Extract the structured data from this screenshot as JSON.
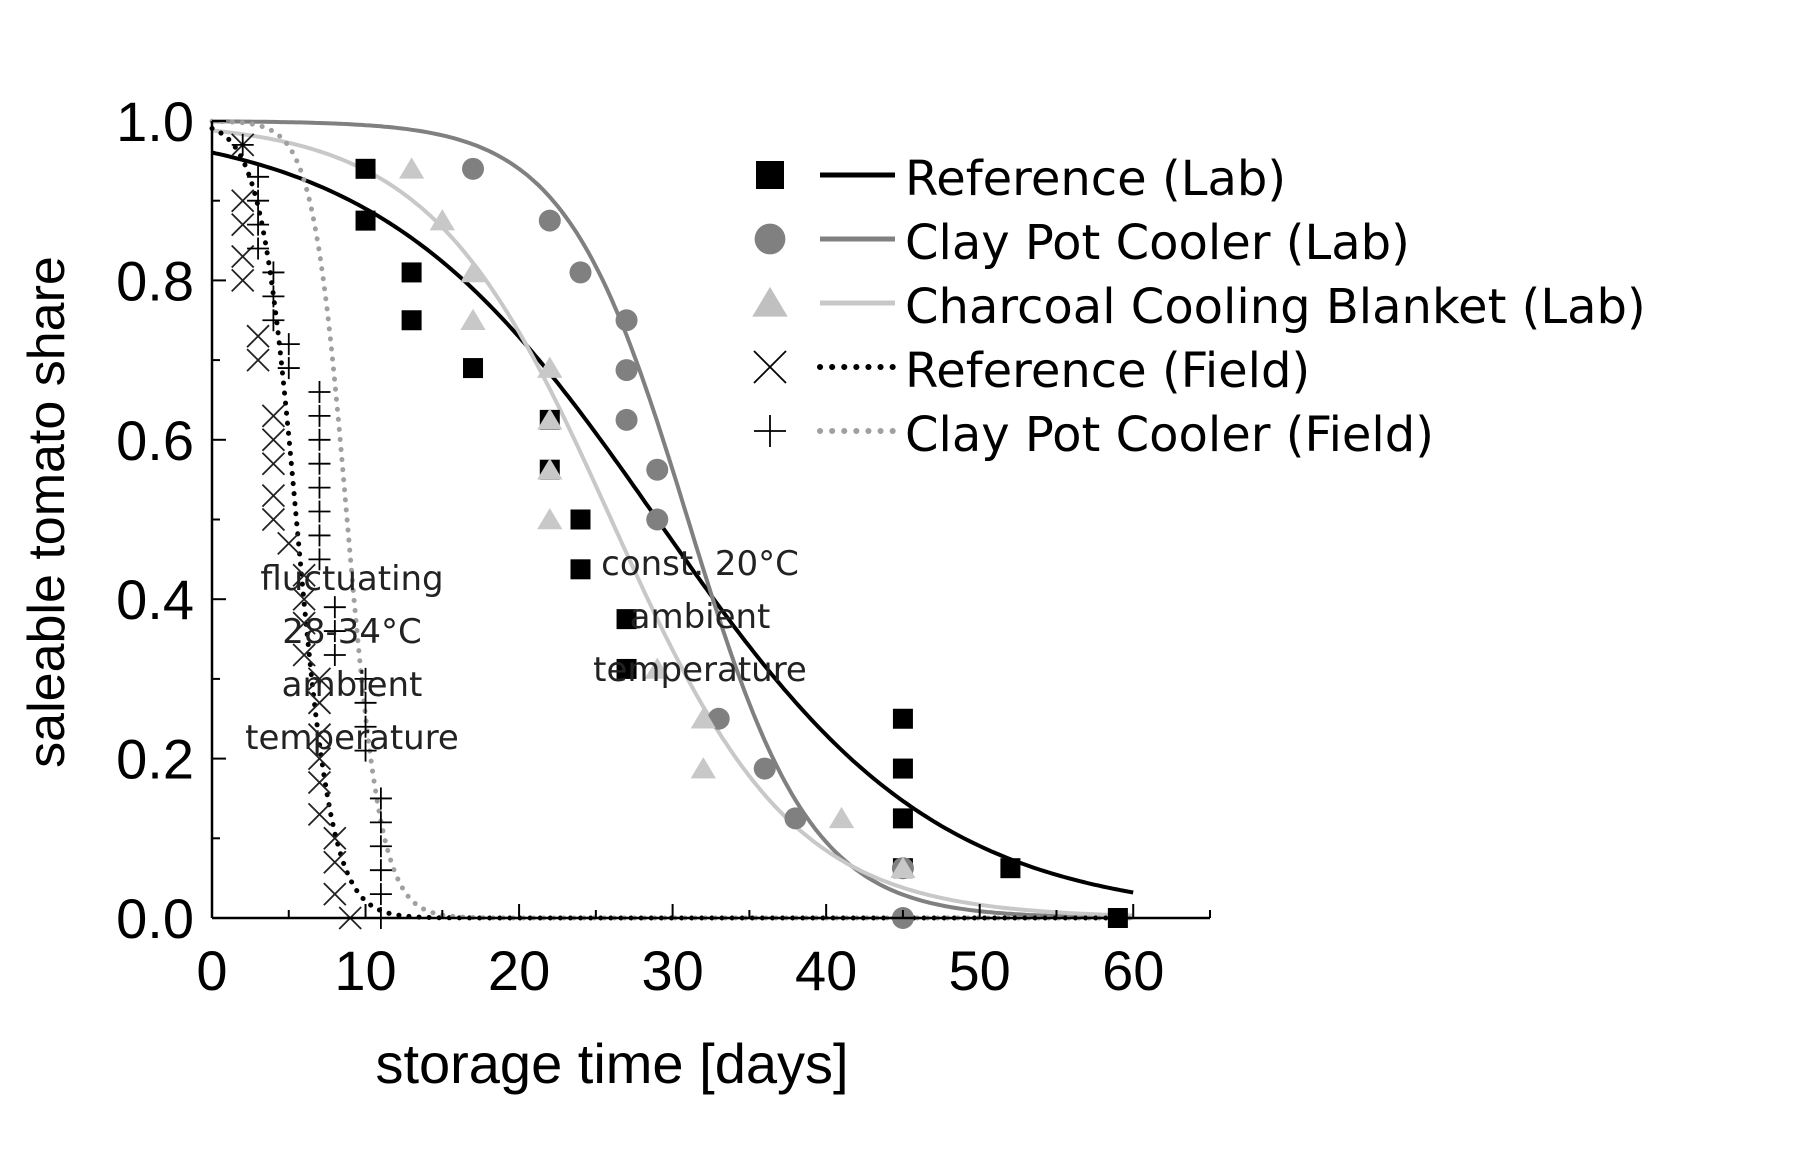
{
  "chart_data": {
    "type": "scatter",
    "title": "",
    "xlabel": "storage time [days]",
    "ylabel": "saleable tomato share",
    "xlim": [
      0,
      65
    ],
    "ylim": [
      0,
      1.0
    ],
    "xticks": [
      0,
      10,
      20,
      30,
      40,
      50,
      60
    ],
    "xtick_labels": [
      "0",
      "10",
      "20",
      "30",
      "40",
      "50",
      "60"
    ],
    "yticks": [
      0,
      0.2,
      0.4,
      0.6,
      0.8,
      1.0
    ],
    "ytick_labels": [
      "0.0",
      "0.2",
      "0.4",
      "0.6",
      "0.8",
      "1.0"
    ],
    "legend_position": "top-right",
    "colors": {
      "reference_lab": "#000000",
      "clay_lab": "#808080",
      "charcoal_lab": "#c8c8c8",
      "reference_field": "#000000",
      "clay_field": "#a0a0a0"
    },
    "series": [
      {
        "key": "reference_lab",
        "name": "Reference (Lab)",
        "marker": "square",
        "line": "solid",
        "points": [
          [
            10,
            0.94
          ],
          [
            10,
            0.875
          ],
          [
            13,
            0.81
          ],
          [
            13,
            0.75
          ],
          [
            17,
            0.69
          ],
          [
            22,
            0.625
          ],
          [
            22,
            0.5625
          ],
          [
            24,
            0.5
          ],
          [
            24,
            0.4375
          ],
          [
            27,
            0.375
          ],
          [
            27,
            0.3125
          ],
          [
            45,
            0.25
          ],
          [
            45,
            0.1875
          ],
          [
            45,
            0.125
          ],
          [
            45,
            0.0625
          ],
          [
            52,
            0.0625
          ],
          [
            59,
            0.0
          ]
        ],
        "fit": {
          "midpoint": 29,
          "steepness": 0.11,
          "y0": 1.0
        }
      },
      {
        "key": "clay_lab",
        "name": "Clay Pot Cooler (Lab)",
        "marker": "circle",
        "line": "solid",
        "points": [
          [
            17,
            0.94
          ],
          [
            22,
            0.875
          ],
          [
            24,
            0.81
          ],
          [
            27,
            0.75
          ],
          [
            27,
            0.6875
          ],
          [
            27,
            0.625
          ],
          [
            29,
            0.5625
          ],
          [
            29,
            0.5
          ],
          [
            33,
            0.25
          ],
          [
            36,
            0.1875
          ],
          [
            38,
            0.125
          ],
          [
            45,
            0.0625
          ],
          [
            45,
            0.0
          ]
        ],
        "fit": {
          "midpoint": 31,
          "steepness": 0.25,
          "y0": 1.0
        }
      },
      {
        "key": "charcoal_lab",
        "name": "Charcoal Cooling Blanket (Lab)",
        "marker": "triangle",
        "line": "solid",
        "points": [
          [
            13,
            0.94
          ],
          [
            15,
            0.875
          ],
          [
            17,
            0.81
          ],
          [
            17,
            0.75
          ],
          [
            22,
            0.69
          ],
          [
            22,
            0.625
          ],
          [
            22,
            0.5625
          ],
          [
            22,
            0.5
          ],
          [
            29,
            0.3125
          ],
          [
            32,
            0.25
          ],
          [
            32,
            0.1875
          ],
          [
            41,
            0.125
          ],
          [
            45,
            0.0625
          ]
        ],
        "fit": {
          "midpoint": 26,
          "steepness": 0.17,
          "y0": 1.0
        }
      },
      {
        "key": "reference_field",
        "name": "Reference (Field)",
        "marker": "x",
        "line": "dotted",
        "points": [
          [
            2,
            0.97
          ],
          [
            2,
            0.9
          ],
          [
            2,
            0.87
          ],
          [
            2,
            0.83
          ],
          [
            2,
            0.8
          ],
          [
            3,
            0.73
          ],
          [
            3,
            0.7
          ],
          [
            4,
            0.63
          ],
          [
            4,
            0.6
          ],
          [
            4,
            0.57
          ],
          [
            4,
            0.53
          ],
          [
            4,
            0.5
          ],
          [
            5,
            0.47
          ],
          [
            6,
            0.43
          ],
          [
            6,
            0.4
          ],
          [
            6,
            0.37
          ],
          [
            6,
            0.33
          ],
          [
            7,
            0.3
          ],
          [
            7,
            0.27
          ],
          [
            7,
            0.23
          ],
          [
            7,
            0.2
          ],
          [
            7,
            0.17
          ],
          [
            7,
            0.13
          ],
          [
            8,
            0.1
          ],
          [
            8,
            0.07
          ],
          [
            8,
            0.03
          ],
          [
            9,
            0.0
          ]
        ],
        "fit": {
          "midpoint": 5.5,
          "steepness": 0.85,
          "y0": 1.0
        }
      },
      {
        "key": "clay_field",
        "name": "Clay Pot Cooler (Field)",
        "marker": "plus",
        "line": "dotted",
        "points": [
          [
            2,
            0.97
          ],
          [
            3,
            0.93
          ],
          [
            3,
            0.9
          ],
          [
            3,
            0.87
          ],
          [
            3,
            0.84
          ],
          [
            4,
            0.81
          ],
          [
            4,
            0.78
          ],
          [
            4,
            0.75
          ],
          [
            5,
            0.72
          ],
          [
            5,
            0.69
          ],
          [
            7,
            0.66
          ],
          [
            7,
            0.63
          ],
          [
            7,
            0.6
          ],
          [
            7,
            0.57
          ],
          [
            7,
            0.54
          ],
          [
            7,
            0.51
          ],
          [
            7,
            0.48
          ],
          [
            7,
            0.45
          ],
          [
            8,
            0.39
          ],
          [
            8,
            0.36
          ],
          [
            8,
            0.33
          ],
          [
            10,
            0.3
          ],
          [
            10,
            0.27
          ],
          [
            10,
            0.24
          ],
          [
            10,
            0.21
          ],
          [
            11,
            0.15
          ],
          [
            11,
            0.12
          ],
          [
            11,
            0.09
          ],
          [
            11,
            0.06
          ],
          [
            11,
            0.03
          ],
          [
            11,
            0.0
          ]
        ],
        "fit": {
          "midpoint": 8.8,
          "steepness": 0.9,
          "y0": 1.0
        }
      }
    ],
    "annotations": [
      {
        "lines": [
          "fluctuating",
          "28-34°C",
          "ambient",
          "temperature"
        ]
      },
      {
        "lines": [
          "const. 20°C",
          "ambient",
          "temperature"
        ]
      }
    ]
  }
}
